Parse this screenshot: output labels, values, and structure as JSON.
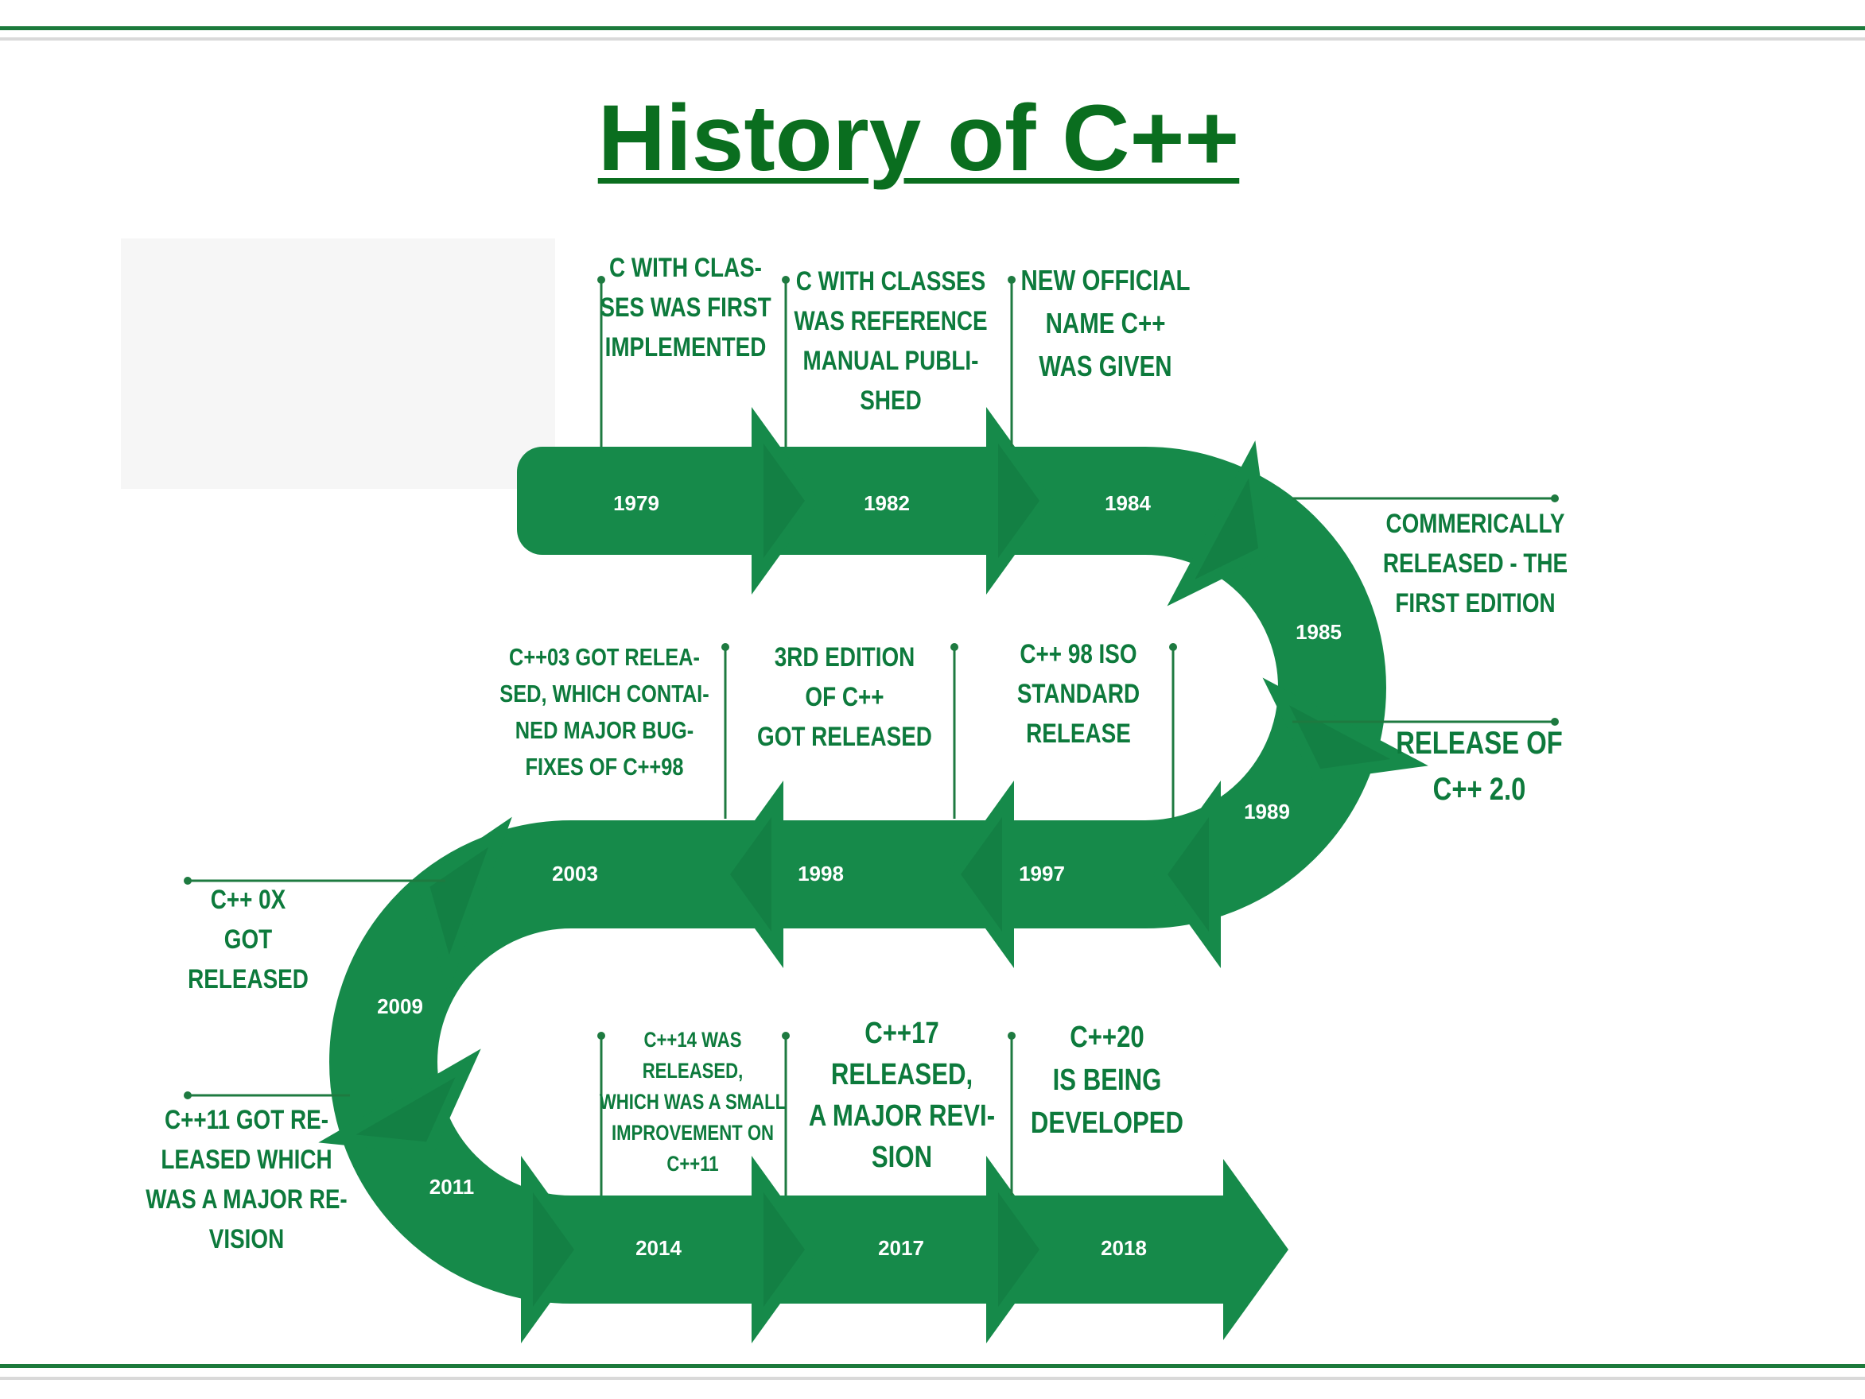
{
  "title": "History of C++",
  "colors": {
    "accent": "#168a4a",
    "title": "#0a6e1f",
    "text": "#0d7a3c",
    "leader": "#1e7a40"
  },
  "events": [
    {
      "year": "1979",
      "caption": [
        "C WITH CLAS-",
        "SES WAS FIRST",
        "IMPLEMENTED"
      ]
    },
    {
      "year": "1982",
      "caption": [
        "C WITH CLASSES",
        "WAS REFERENCE",
        "MANUAL PUBLI-",
        "SHED"
      ]
    },
    {
      "year": "1984",
      "caption": [
        "NEW OFFICIAL",
        "NAME C++",
        "WAS GIVEN"
      ]
    },
    {
      "year": "1985",
      "caption": [
        "COMMERICALLY",
        "RELEASED - THE",
        "FIRST EDITION"
      ]
    },
    {
      "year": "1989",
      "caption": [
        "RELEASE OF",
        "C++ 2.0"
      ]
    },
    {
      "year": "1997",
      "caption": [
        "C++ 98 ISO",
        "STANDARD",
        "RELEASE"
      ]
    },
    {
      "year": "1998",
      "caption": [
        "3RD EDITION",
        "OF C++",
        "GOT RELEASED"
      ]
    },
    {
      "year": "2003",
      "caption": [
        "C++03 GOT RELEA-",
        "SED, WHICH CONTAI-",
        "NED MAJOR BUG-",
        "FIXES OF C++98"
      ]
    },
    {
      "year": "2009",
      "caption": [
        "C++ 0X",
        "GOT",
        "RELEASED"
      ]
    },
    {
      "year": "2011",
      "caption": [
        "C++11 GOT RE-",
        "LEASED WHICH",
        "WAS A MAJOR RE-",
        "VISION"
      ]
    },
    {
      "year": "2014",
      "caption": [
        "C++14 WAS",
        "RELEASED,",
        "WHICH WAS A SMALL",
        "IMPROVEMENT ON",
        "C++11"
      ]
    },
    {
      "year": "2017",
      "caption": [
        "C++17",
        "RELEASED,",
        "A MAJOR REVI-",
        "SION"
      ]
    },
    {
      "year": "2018",
      "caption": [
        "C++20",
        "IS BEING",
        "DEVELOPED"
      ]
    }
  ]
}
